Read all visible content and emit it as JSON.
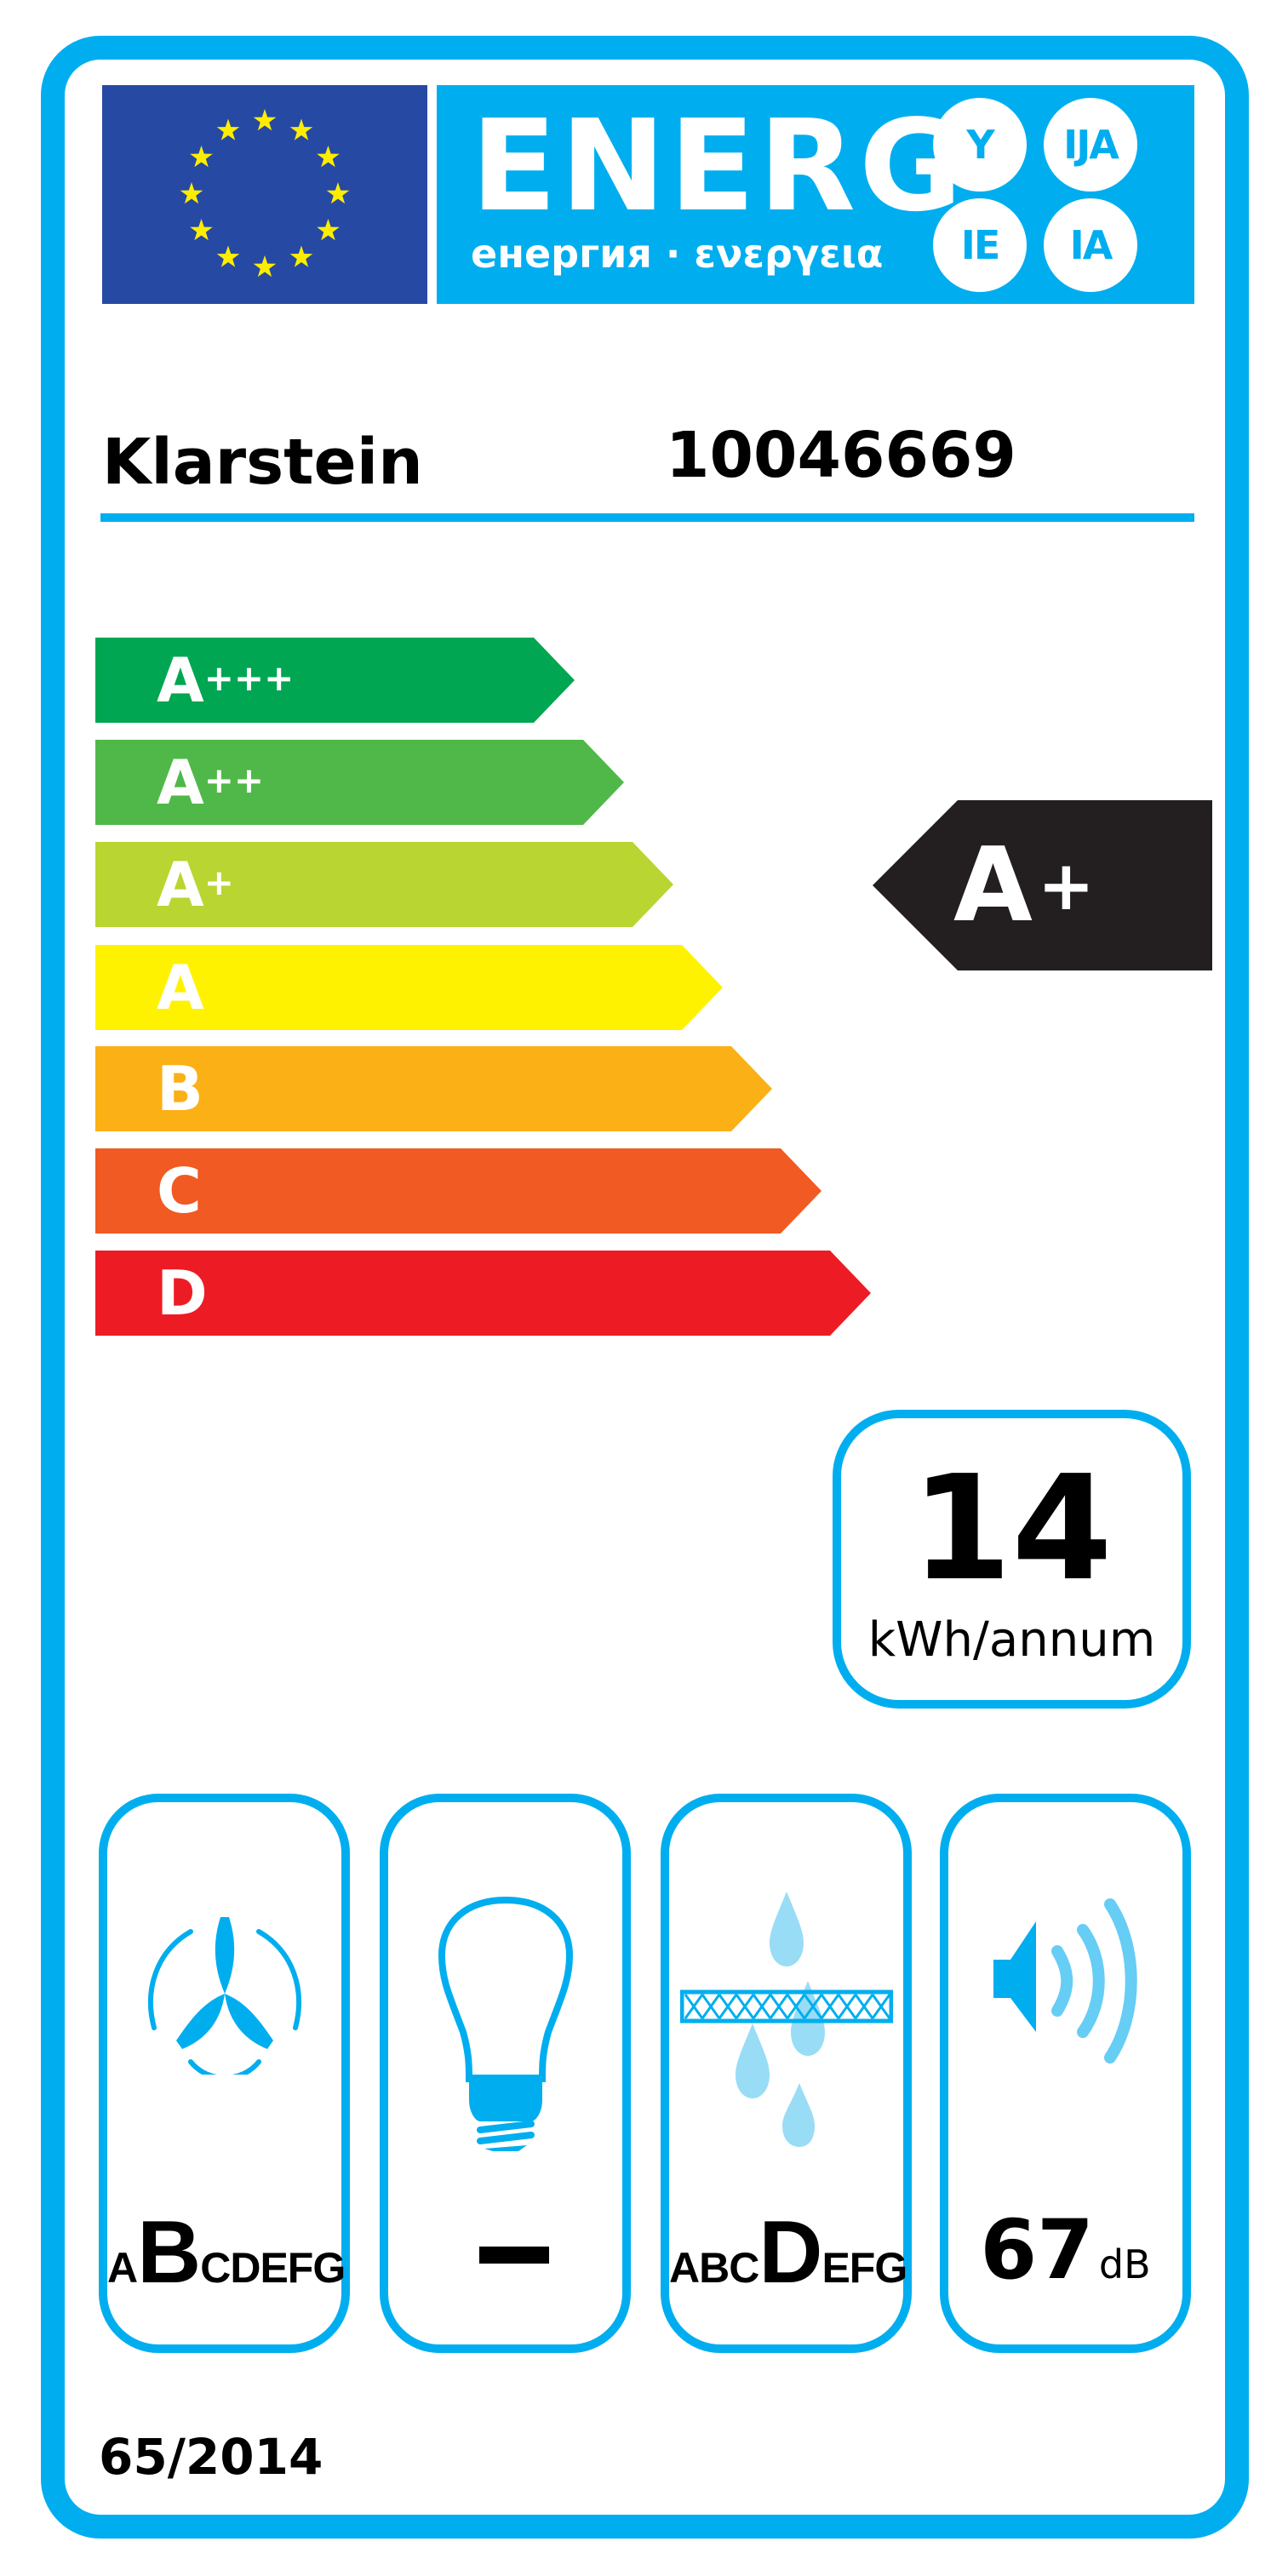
{
  "header": {
    "energy_word": "ENERG",
    "energy_subtitle": "енергия · ενεργεια",
    "suffixes": [
      "Y",
      "IJA",
      "IE",
      "IA"
    ]
  },
  "product": {
    "brand": "Klarstein",
    "model": "10046669"
  },
  "scale": [
    {
      "letter": "A",
      "plus": "+++",
      "color": "#00a651"
    },
    {
      "letter": "A",
      "plus": "++",
      "color": "#50b848"
    },
    {
      "letter": "A",
      "plus": "+",
      "color": "#b9d531"
    },
    {
      "letter": "A",
      "plus": "",
      "color": "#fff200"
    },
    {
      "letter": "B",
      "plus": "",
      "color": "#fbb016"
    },
    {
      "letter": "C",
      "plus": "",
      "color": "#f15a22"
    },
    {
      "letter": "D",
      "plus": "",
      "color": "#ed1c24"
    }
  ],
  "rating": {
    "letter": "A",
    "plus": "+",
    "color": "#231f20"
  },
  "consumption": {
    "value": "14",
    "unit": "kWh/annum"
  },
  "icons": {
    "fan": {
      "icon": "fan-icon",
      "classes": "ABCDEFG",
      "selected": "B"
    },
    "lighting": {
      "icon": "light-bulb-icon",
      "value": "—"
    },
    "grease_filter": {
      "icon": "grease-filter-icon",
      "classes": "ABCDEFG",
      "selected": "D"
    },
    "noise": {
      "icon": "speaker-icon",
      "value": "67",
      "unit": "dB"
    }
  },
  "regulation": "65/2014",
  "colors": {
    "accent": "#00aeef",
    "eu_flag": "#2649a4",
    "star": "#ffed00"
  }
}
